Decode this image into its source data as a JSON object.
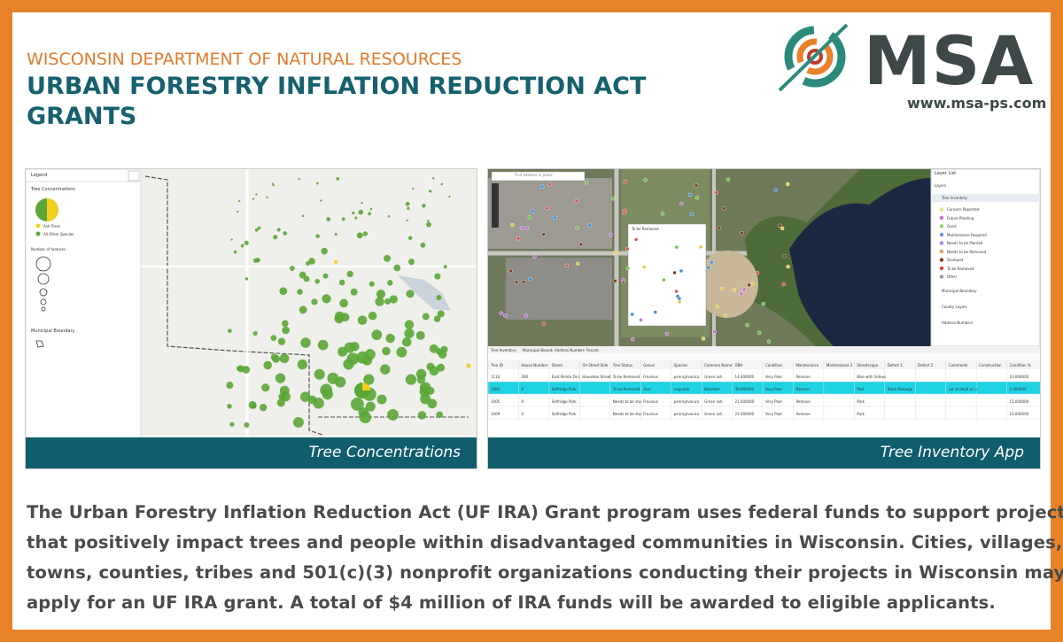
{
  "header": {
    "organization": "WISCONSIN DEPARTMENT OF NATURAL RESOURCES",
    "title_lines": [
      "URBAN FORESTRY INFLATION REDUCTION ACT",
      "GRANTS"
    ]
  },
  "logo": {
    "name": "MSA",
    "url": "www.msa-ps.com"
  },
  "panels": [
    {
      "caption": "Tree Concentrations",
      "legend": {
        "title": "Legend",
        "layer": "Tree Concentrations",
        "categories": [
          "Ash Trees",
          "All Other Species"
        ],
        "size_title": "Number of features",
        "boundary": "Municipal Boundary"
      }
    },
    {
      "caption": "Tree Inventory App",
      "search_placeholder": "Find address or place",
      "popup_title": "To be Removed",
      "layer_list": {
        "title": "Layer List",
        "heading": "Layers",
        "group": "Tree Inventory",
        "items": [
          "Concern Reported",
          "Future Planting",
          "Good",
          "Maintenance Required",
          "Needs to be Planted",
          "Needs to be Removed",
          "Stumped",
          "To be Removed",
          "Other"
        ],
        "others": [
          "Municipal Boundary",
          "County Layers",
          "Address Numbers"
        ]
      },
      "table": {
        "tabs": [
          "Tree Inventory",
          "Municipal Boundary",
          "Address Numbers",
          "Parcels"
        ],
        "columns": [
          "Tree ID",
          "House Number",
          "Street",
          "On Street Side",
          "Tree Status",
          "Genus",
          "Species",
          "Common Name",
          "DBH",
          "Condition",
          "Maintenance",
          "Maintenance 2",
          "Streetscape",
          "Defect 1",
          "Defect 2",
          "Comments",
          "Construction",
          "Condition %"
        ],
        "rows": [
          [
            "1110",
            "260",
            "East Pointe De Lac Street",
            "Houseton Street",
            "To be Removed",
            "Fraxinus",
            "pennsylvanica",
            "Green ash",
            "14.000000",
            "Very Poor",
            "Remove",
            "",
            "Bike with Sidewalk",
            "",
            "",
            "",
            "",
            "10.000000"
          ],
          [
            "1084",
            "0",
            "Selfridge Park",
            "",
            "To be Removed",
            "Acer",
            "negundo",
            "Boxelder",
            "40.000000",
            "Very Poor",
            "Remove",
            "",
            "Park",
            "Stem Damage",
            "",
            "Lot of dead on stem ",
            "",
            "5.000000"
          ],
          [
            "1005",
            "0",
            "Selfridge Park",
            "",
            "Needs to be stumped",
            "Fraxinus",
            "pennsylvanica",
            "Green ash",
            "21.000000",
            "Very Poor",
            "Remove",
            "",
            "Park",
            "",
            "",
            "",
            "",
            "15.000000"
          ],
          [
            "1009",
            "0",
            "Selfridge Park",
            "",
            "Needs to be stumped",
            "Fraxinus",
            "pennsylvanica",
            "Green ash",
            "21.000000",
            "Very Poor",
            "Remove",
            "",
            "Park",
            "",
            "",
            "",
            "",
            "10.000000"
          ]
        ]
      }
    }
  ],
  "body": {
    "lines": [
      "The Urban Forestry Inflation Reduction Act (UF IRA) Grant program uses federal funds to support projects",
      "that positively impact trees and people within disadvantaged communities in Wisconsin. Cities, villages,",
      "towns, counties, tribes and 501(c)(3) nonprofit organizations conducting their projects in Wisconsin may",
      "apply for an UF IRA grant. A total of $4 million of IRA funds will be awarded to eligible applicants."
    ]
  }
}
